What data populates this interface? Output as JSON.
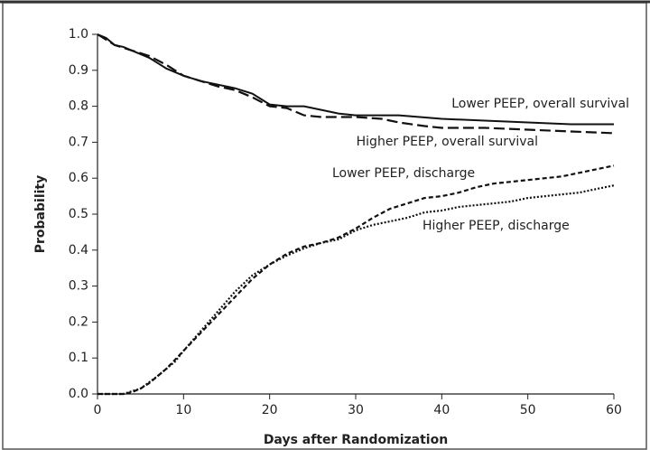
{
  "chart_data": {
    "type": "line",
    "xlabel": "Days after Randomization",
    "ylabel": "Probability",
    "xlim": [
      0,
      60
    ],
    "xticks": [
      0,
      10,
      20,
      30,
      40,
      50,
      60
    ],
    "ylim": [
      0,
      1
    ],
    "yticks": [
      {
        "value": 0,
        "label": "0.0"
      },
      0.1,
      0.2,
      0.3,
      0.4,
      0.5,
      0.6,
      0.7,
      0.8,
      0.9,
      {
        "value": 1,
        "label": "1.0"
      }
    ],
    "series": [
      {
        "name": "Lower PEEP, overall survival",
        "color": "#111111",
        "line_style": "solid",
        "x": [
          0,
          1,
          2,
          3,
          4,
          5,
          6,
          7,
          8,
          9,
          10,
          12,
          14,
          16,
          18,
          20,
          22,
          24,
          26,
          28,
          30,
          35,
          40,
          45,
          50,
          55,
          60
        ],
        "values": [
          1.0,
          0.99,
          0.97,
          0.965,
          0.955,
          0.945,
          0.935,
          0.92,
          0.905,
          0.895,
          0.885,
          0.87,
          0.86,
          0.85,
          0.835,
          0.805,
          0.8,
          0.8,
          0.79,
          0.78,
          0.775,
          0.775,
          0.765,
          0.76,
          0.755,
          0.75,
          0.75
        ]
      },
      {
        "name": "Higher PEEP, overall survival",
        "color": "#111111",
        "line_style": "long-dash",
        "x": [
          0,
          2,
          4,
          6,
          8,
          10,
          12,
          14,
          16,
          18,
          20,
          22,
          24,
          26,
          28,
          30,
          33,
          35,
          38,
          40,
          45,
          50,
          55,
          60
        ],
        "values": [
          1.0,
          0.97,
          0.955,
          0.94,
          0.915,
          0.885,
          0.87,
          0.855,
          0.845,
          0.825,
          0.8,
          0.795,
          0.775,
          0.77,
          0.77,
          0.77,
          0.765,
          0.755,
          0.745,
          0.74,
          0.74,
          0.735,
          0.73,
          0.725
        ]
      },
      {
        "name": "Lower PEEP, discharge",
        "color": "#111111",
        "line_style": "short-dash",
        "x": [
          0,
          3,
          4,
          5,
          6,
          7,
          8,
          9,
          10,
          12,
          14,
          16,
          18,
          20,
          22,
          24,
          26,
          28,
          30,
          32,
          34,
          36,
          38,
          40,
          42,
          44,
          46,
          48,
          50,
          52,
          54,
          56,
          58,
          60
        ],
        "values": [
          0,
          0,
          0.005,
          0.015,
          0.03,
          0.05,
          0.07,
          0.095,
          0.12,
          0.17,
          0.22,
          0.27,
          0.32,
          0.36,
          0.39,
          0.41,
          0.42,
          0.435,
          0.46,
          0.49,
          0.515,
          0.53,
          0.545,
          0.55,
          0.56,
          0.575,
          0.585,
          0.59,
          0.595,
          0.6,
          0.605,
          0.615,
          0.625,
          0.635
        ]
      },
      {
        "name": "Higher PEEP, discharge",
        "color": "#111111",
        "line_style": "dotted",
        "x": [
          0,
          3,
          5,
          7,
          9,
          10,
          12,
          14,
          16,
          18,
          20,
          22,
          24,
          26,
          28,
          30,
          32,
          34,
          36,
          38,
          40,
          42,
          44,
          46,
          48,
          50,
          52,
          54,
          56,
          58,
          60
        ],
        "values": [
          0,
          0,
          0.015,
          0.05,
          0.09,
          0.12,
          0.175,
          0.23,
          0.285,
          0.33,
          0.36,
          0.385,
          0.405,
          0.42,
          0.43,
          0.455,
          0.47,
          0.48,
          0.49,
          0.505,
          0.51,
          0.52,
          0.525,
          0.53,
          0.535,
          0.545,
          0.55,
          0.555,
          0.56,
          0.57,
          0.58
        ]
      }
    ]
  }
}
